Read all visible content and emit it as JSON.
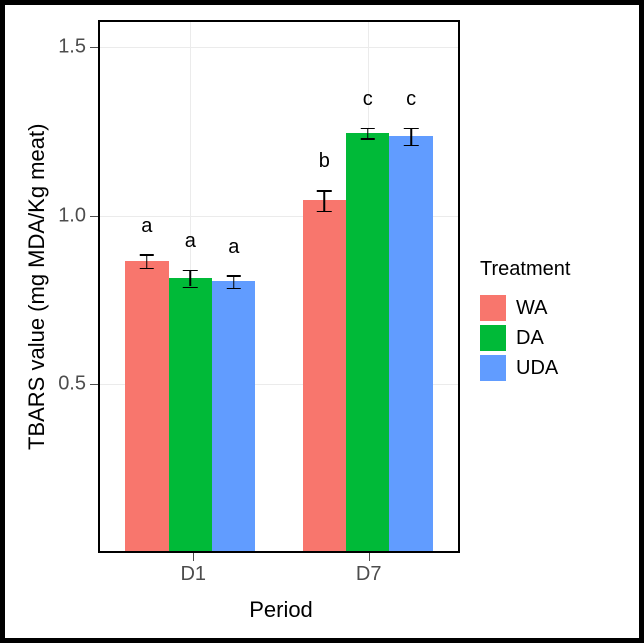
{
  "chart": {
    "type": "bar",
    "y_axis": {
      "title": "TBARS value (mg MDA/Kg meat)",
      "min": 0,
      "max": 1.58,
      "ticks": [
        0.5,
        1.0,
        1.5
      ],
      "tick_labels": [
        "0.5",
        "1.0",
        "1.5"
      ],
      "title_fontsize": 22,
      "tick_fontsize": 20,
      "tick_color": "#4d4d4d"
    },
    "x_axis": {
      "title": "Period",
      "categories": [
        "D1",
        "D7"
      ],
      "category_centers_pct": [
        25.5,
        74.5
      ],
      "title_fontsize": 22,
      "tick_fontsize": 20,
      "tick_color": "#4d4d4d"
    },
    "series": [
      {
        "name": "WA",
        "color": "#f8766d"
      },
      {
        "name": "DA",
        "color": "#00ba38"
      },
      {
        "name": "UDA",
        "color": "#619cff"
      }
    ],
    "bars": [
      {
        "cat": 0,
        "series": 0,
        "value": 0.865,
        "err": 0.02,
        "label": "a"
      },
      {
        "cat": 0,
        "series": 1,
        "value": 0.815,
        "err": 0.025,
        "label": "a"
      },
      {
        "cat": 0,
        "series": 2,
        "value": 0.805,
        "err": 0.018,
        "label": "a"
      },
      {
        "cat": 1,
        "series": 0,
        "value": 1.045,
        "err": 0.03,
        "label": "b"
      },
      {
        "cat": 1,
        "series": 1,
        "value": 1.245,
        "err": 0.015,
        "label": "c"
      },
      {
        "cat": 1,
        "series": 2,
        "value": 1.235,
        "err": 0.025,
        "label": "c"
      }
    ],
    "bar_width_pct": 12,
    "error_cap_width_pct": 4,
    "sig_label_fontsize": 20,
    "sig_label_offset_vunits": 0.05,
    "panel_bg": "#ffffff",
    "grid_color": "#ebebeb",
    "panel_border_color": "#000000",
    "panel_border_width": 2,
    "legend": {
      "title": "Treatment",
      "fontsize": 20,
      "swatch_size": 26
    }
  }
}
